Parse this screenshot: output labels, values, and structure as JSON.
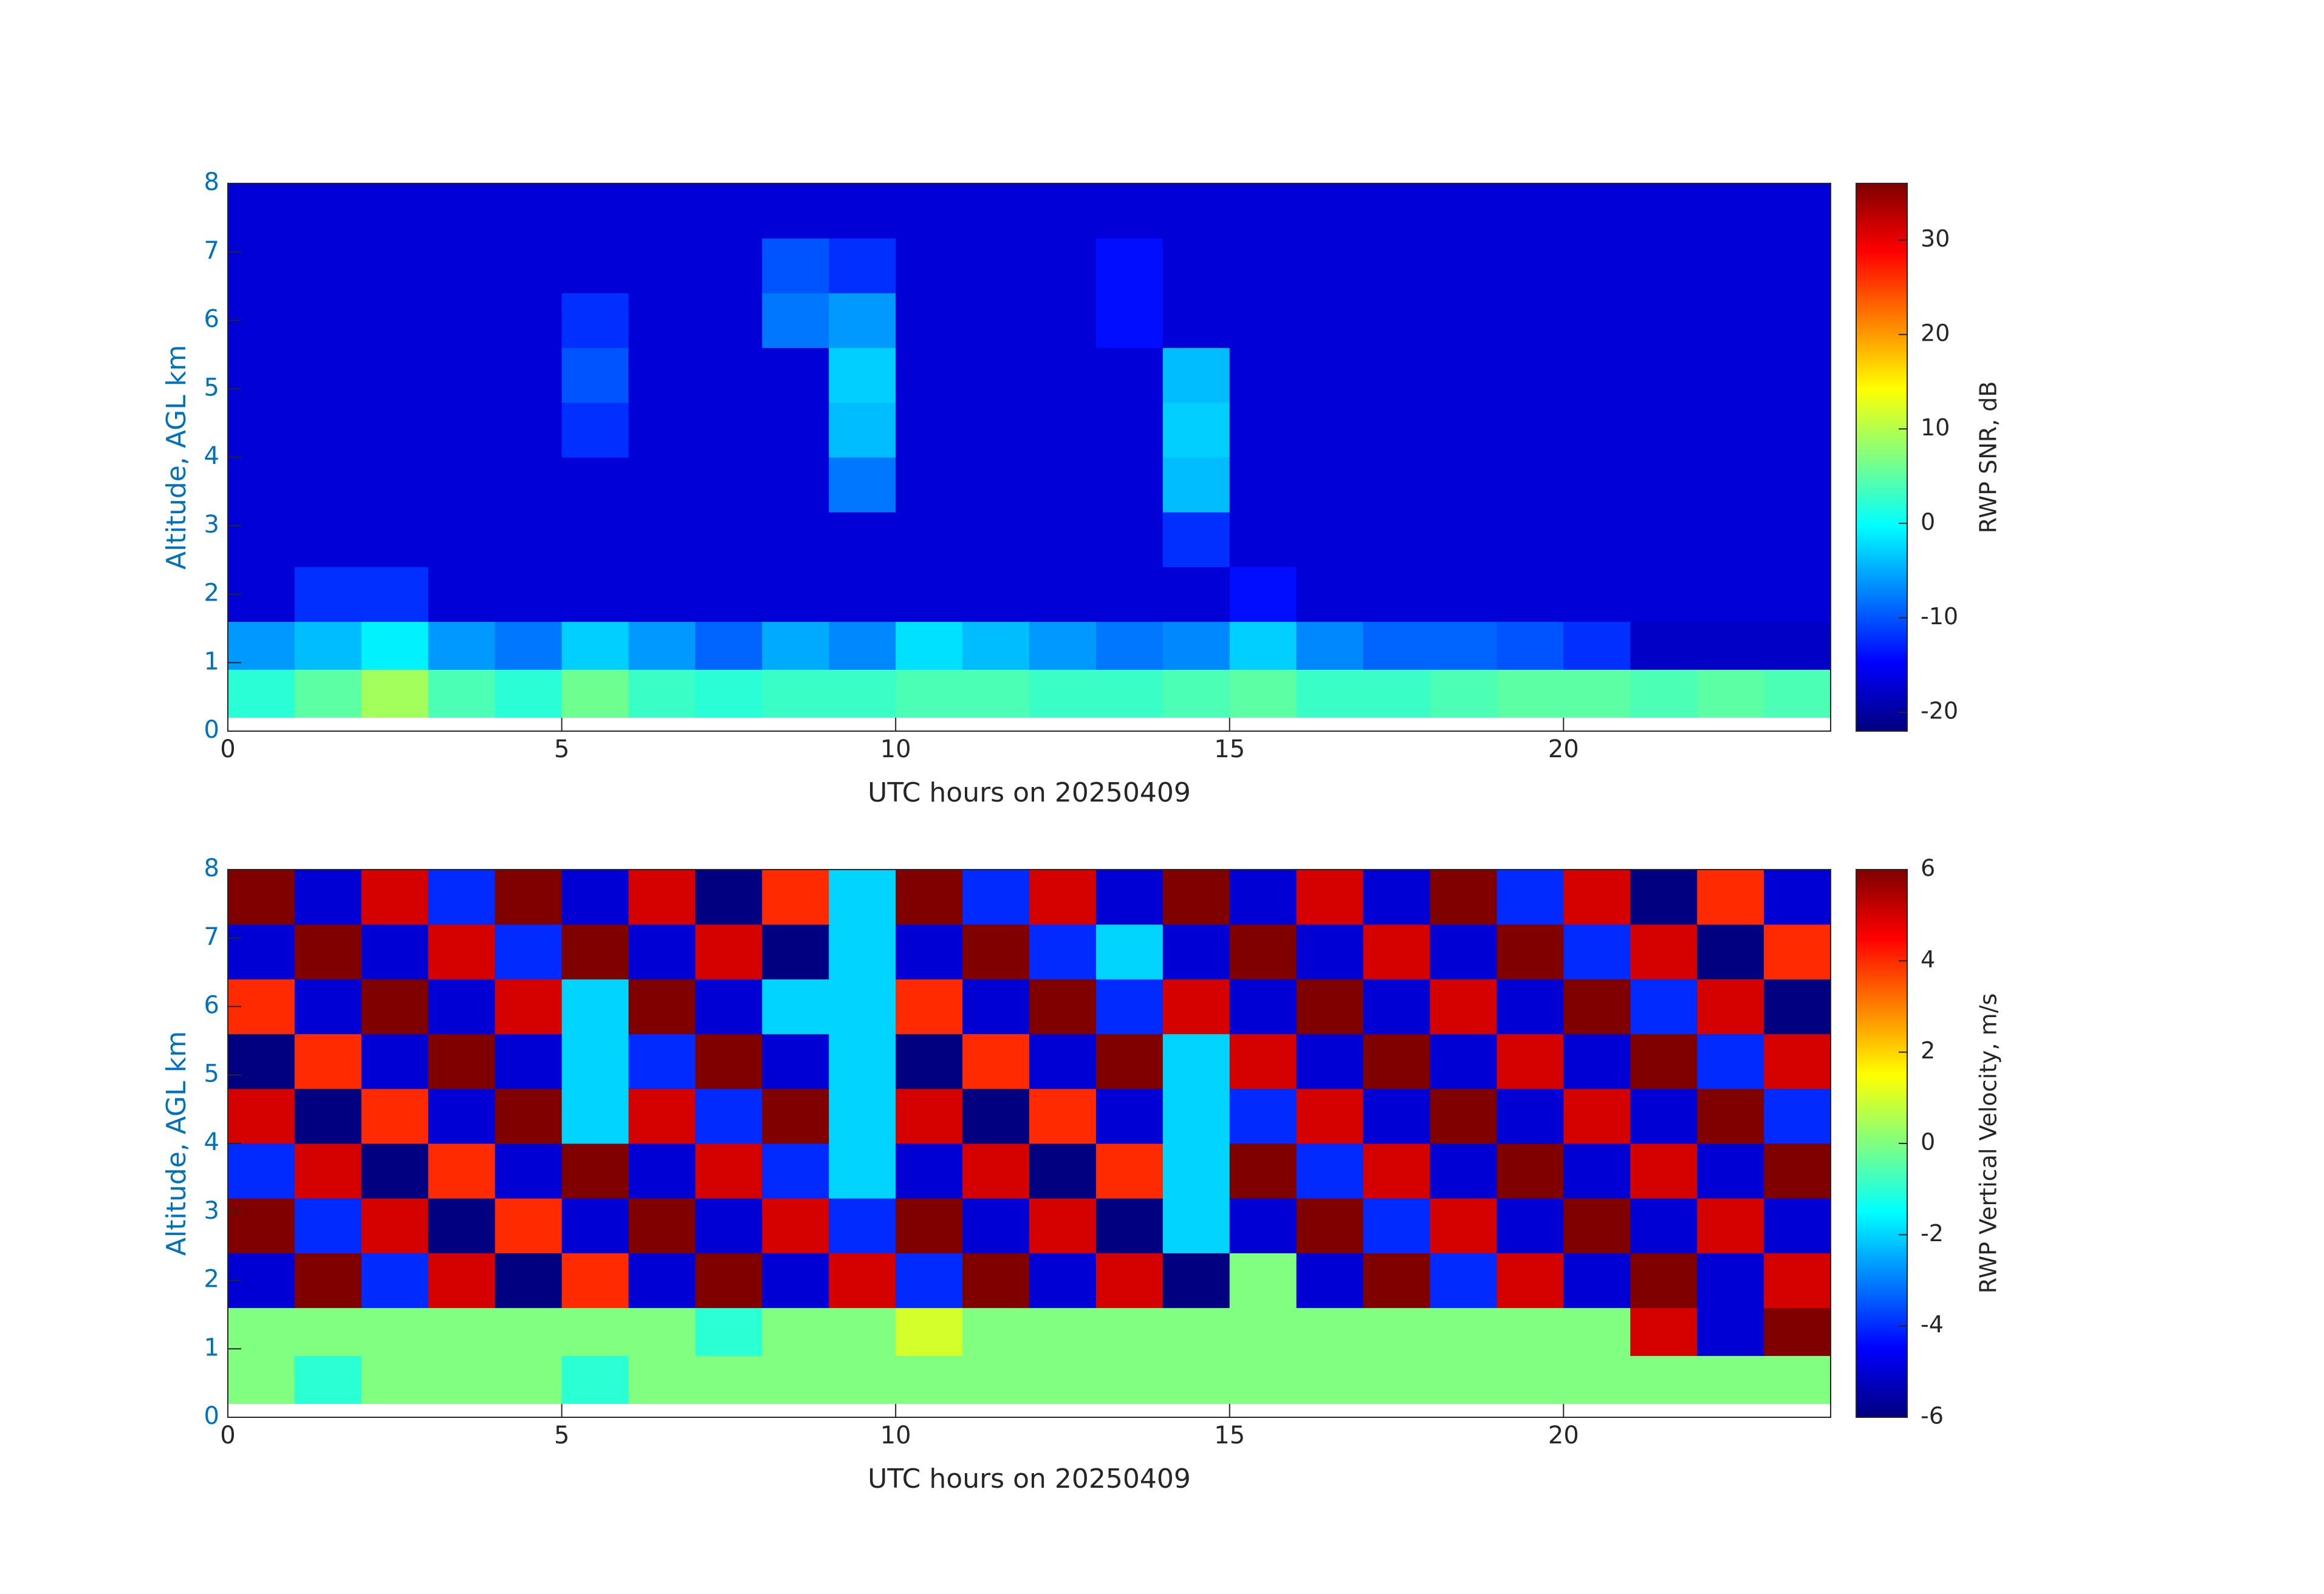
{
  "chart_data": [
    {
      "type": "heatmap",
      "colormap": "jet",
      "xlabel": "UTC hours on 20250409",
      "ylabel": "Altitude, AGL km",
      "colorbar_label": "RWP SNR, dB",
      "xlim": [
        0,
        24
      ],
      "xticks": [
        0,
        5,
        10,
        15,
        20
      ],
      "ylim": [
        0,
        8
      ],
      "yticks": [
        0,
        1,
        2,
        3,
        4,
        5,
        6,
        7,
        8
      ],
      "clim": [
        -22,
        36
      ],
      "colorbar_ticks": [
        -20,
        -10,
        0,
        10,
        20,
        30
      ],
      "xbins": [
        0,
        1,
        2,
        3,
        4,
        5,
        6,
        7,
        8,
        9,
        10,
        11,
        12,
        13,
        14,
        15,
        16,
        17,
        18,
        19,
        20,
        21,
        22,
        23,
        24
      ],
      "ybins": [
        0.2,
        0.9,
        1.6,
        2.4,
        3.2,
        4,
        4.8,
        5.6,
        6.4,
        7.2,
        8
      ],
      "z": [
        [
          2,
          5,
          9,
          4,
          2,
          6,
          3,
          2,
          3,
          3,
          4,
          4,
          3,
          3,
          4,
          5,
          3,
          3,
          4,
          5,
          5,
          4,
          5,
          4
        ],
        [
          -6,
          -4,
          -1,
          -6,
          -8,
          -3,
          -6,
          -9,
          -5,
          -7,
          -2,
          -4,
          -6,
          -8,
          -7,
          -3,
          -7,
          -9,
          -9,
          -10,
          -12,
          -18,
          -18,
          -18
        ],
        [
          -17,
          -12,
          -12,
          -17,
          -17,
          -17,
          -17,
          -17,
          -17,
          -17,
          -17,
          -17,
          -17,
          -17,
          -17,
          -14,
          -17,
          -17,
          -17,
          -17,
          -17,
          -17,
          -17,
          -17
        ],
        [
          -17,
          -17,
          -17,
          -17,
          -17,
          -17,
          -17,
          -17,
          -17,
          -17,
          -17,
          -17,
          -17,
          -17,
          -12,
          -17,
          -17,
          -17,
          -17,
          -17,
          -17,
          -17,
          -17,
          -17
        ],
        [
          -17,
          -17,
          -17,
          -17,
          -17,
          -17,
          -17,
          -17,
          -17,
          -8,
          -17,
          -17,
          -17,
          -17,
          -4,
          -17,
          -17,
          -17,
          -17,
          -17,
          -17,
          -17,
          -17,
          -17
        ],
        [
          -17,
          -17,
          -17,
          -17,
          -17,
          -12,
          -17,
          -17,
          -17,
          -4,
          -17,
          -17,
          -17,
          -17,
          -3,
          -17,
          -17,
          -17,
          -17,
          -17,
          -17,
          -17,
          -17,
          -17
        ],
        [
          -17,
          -17,
          -17,
          -17,
          -17,
          -10,
          -17,
          -17,
          -17,
          -3,
          -17,
          -17,
          -17,
          -17,
          -4,
          -17,
          -17,
          -17,
          -17,
          -17,
          -17,
          -17,
          -17,
          -17
        ],
        [
          -17,
          -17,
          -17,
          -17,
          -17,
          -12,
          -17,
          -17,
          -8,
          -6,
          -17,
          -17,
          -17,
          -14,
          -17,
          -17,
          -17,
          -17,
          -17,
          -17,
          -17,
          -17,
          -17,
          -17
        ],
        [
          -17,
          -17,
          -17,
          -17,
          -17,
          -17,
          -17,
          -17,
          -10,
          -12,
          -17,
          -17,
          -17,
          -14,
          -17,
          -17,
          -17,
          -17,
          -17,
          -17,
          -17,
          -17,
          -17,
          -17
        ],
        [
          -17,
          -17,
          -17,
          -17,
          -17,
          -17,
          -17,
          -17,
          -17,
          -17,
          -17,
          -17,
          -17,
          -17,
          -17,
          -17,
          -17,
          -17,
          -17,
          -17,
          -17,
          -17,
          -17,
          -17
        ]
      ]
    },
    {
      "type": "heatmap",
      "colormap": "jet",
      "xlabel": "UTC hours on 20250409",
      "ylabel": "Altitude, AGL km",
      "colorbar_label": "RWP Vertical Velocity, m/s",
      "xlim": [
        0,
        24
      ],
      "xticks": [
        0,
        5,
        10,
        15,
        20
      ],
      "ylim": [
        0,
        8
      ],
      "yticks": [
        0,
        1,
        2,
        3,
        4,
        5,
        6,
        7,
        8
      ],
      "clim": [
        -6,
        6
      ],
      "colorbar_ticks": [
        -6,
        -4,
        -2,
        0,
        2,
        4,
        6
      ],
      "xbins": [
        0,
        1,
        2,
        3,
        4,
        5,
        6,
        7,
        8,
        9,
        10,
        11,
        12,
        13,
        14,
        15,
        16,
        17,
        18,
        19,
        20,
        21,
        22,
        23,
        24
      ],
      "ybins": [
        0.2,
        0.9,
        1.6,
        2.4,
        3.2,
        4,
        4.8,
        5.6,
        6.4,
        7.2,
        8
      ],
      "z": [
        [
          0,
          -1,
          0,
          0,
          0,
          -1,
          0,
          0,
          0,
          0,
          0,
          0,
          0,
          0,
          0,
          0,
          0,
          0,
          0,
          0,
          0,
          0,
          0,
          0
        ],
        [
          0,
          0,
          0,
          0,
          0,
          0,
          0,
          -1,
          0,
          0,
          1,
          0,
          0,
          0,
          0,
          0,
          0,
          0,
          0,
          0,
          0,
          5,
          -5,
          6
        ],
        [
          -5,
          6,
          -4,
          5,
          -6,
          4,
          -5,
          6,
          -5,
          5,
          -4,
          6,
          -5,
          5,
          -6,
          0,
          -5,
          6,
          -4,
          5,
          -5,
          6,
          -5,
          5
        ],
        [
          6,
          -4,
          5,
          -6,
          4,
          -5,
          6,
          -5,
          5,
          -4,
          6,
          -5,
          5,
          -6,
          -2,
          -5,
          6,
          -4,
          5,
          -5,
          6,
          -5,
          5,
          -5
        ],
        [
          -4,
          5,
          -6,
          4,
          -5,
          6,
          -5,
          5,
          -4,
          -2,
          -5,
          5,
          -6,
          4,
          -2,
          6,
          -4,
          5,
          -5,
          6,
          -5,
          5,
          -5,
          6
        ],
        [
          5,
          -6,
          4,
          -5,
          6,
          -2,
          5,
          -4,
          6,
          -2,
          5,
          -6,
          4,
          -5,
          -2,
          -4,
          5,
          -5,
          6,
          -5,
          5,
          -5,
          6,
          -4
        ],
        [
          -6,
          4,
          -5,
          6,
          -5,
          -2,
          -4,
          6,
          -5,
          -2,
          -6,
          4,
          -5,
          6,
          -2,
          5,
          -5,
          6,
          -5,
          5,
          -5,
          6,
          -4,
          5
        ],
        [
          4,
          -5,
          6,
          -5,
          5,
          -2,
          6,
          -5,
          -2,
          -2,
          4,
          -5,
          6,
          -4,
          5,
          -5,
          6,
          -5,
          5,
          -5,
          6,
          -4,
          5,
          -6
        ],
        [
          -5,
          6,
          -5,
          5,
          -4,
          6,
          -5,
          5,
          -6,
          -2,
          -5,
          6,
          -4,
          -2,
          -5,
          6,
          -5,
          5,
          -5,
          6,
          -4,
          5,
          -6,
          4
        ],
        [
          6,
          -5,
          5,
          -4,
          6,
          -5,
          5,
          -6,
          4,
          -2,
          6,
          -4,
          5,
          -5,
          6,
          -5,
          5,
          -5,
          6,
          -4,
          5,
          -6,
          4,
          -5
        ]
      ]
    }
  ]
}
